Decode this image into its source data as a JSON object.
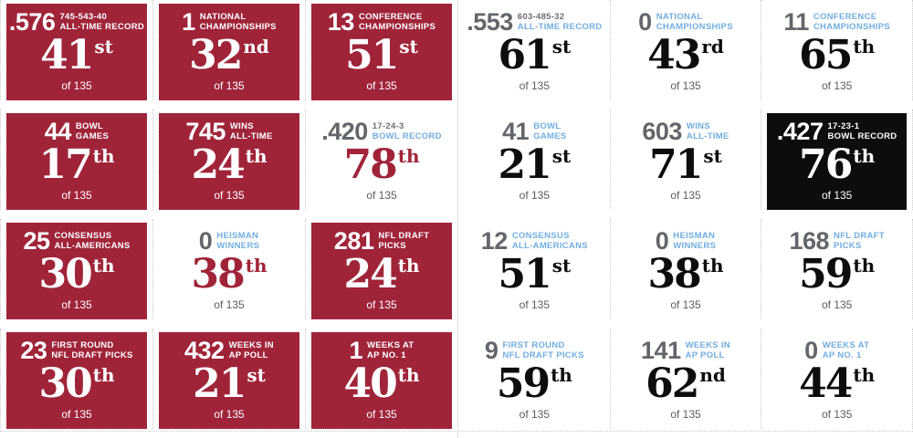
{
  "of_label": "of 135",
  "colors": {
    "left_team": "#a02439",
    "right_team": "#0d0d0d",
    "label_blue": "#72aee1",
    "stat_gray": "#63666a",
    "border": "#c9c9c9"
  },
  "teams": [
    {
      "side": "left",
      "color": "#a02439",
      "stats": [
        {
          "value": ".576",
          "label": [
            "745-543-40",
            "ALL-TIME RECORD"
          ],
          "muted_first": true,
          "rank": "41",
          "ordinal": "st",
          "highlight": true
        },
        {
          "value": "1",
          "label": [
            "NATIONAL",
            "CHAMPIONSHIPS"
          ],
          "muted_first": false,
          "rank": "32",
          "ordinal": "nd",
          "highlight": true
        },
        {
          "value": "13",
          "label": [
            "CONFERENCE",
            "CHAMPIONSHIPS"
          ],
          "muted_first": false,
          "rank": "51",
          "ordinal": "st",
          "highlight": true
        },
        {
          "value": "44",
          "label": [
            "BOWL",
            "GAMES"
          ],
          "muted_first": false,
          "rank": "17",
          "ordinal": "th",
          "highlight": true
        },
        {
          "value": "745",
          "label": [
            "WINS",
            "ALL-TIME"
          ],
          "muted_first": false,
          "rank": "24",
          "ordinal": "th",
          "highlight": true
        },
        {
          "value": ".420",
          "label": [
            "17-24-3",
            "BOWL RECORD"
          ],
          "muted_first": true,
          "rank": "78",
          "ordinal": "th",
          "highlight": false
        },
        {
          "value": "25",
          "label": [
            "CONSENSUS",
            "ALL-AMERICANS"
          ],
          "muted_first": false,
          "rank": "30",
          "ordinal": "th",
          "highlight": true
        },
        {
          "value": "0",
          "label": [
            "HEISMAN",
            "WINNERS"
          ],
          "muted_first": false,
          "rank": "38",
          "ordinal": "th",
          "highlight": false
        },
        {
          "value": "281",
          "label": [
            "NFL DRAFT",
            "PICKS"
          ],
          "muted_first": false,
          "rank": "24",
          "ordinal": "th",
          "highlight": true
        },
        {
          "value": "23",
          "label": [
            "FIRST ROUND",
            "NFL DRAFT PICKS"
          ],
          "muted_first": false,
          "rank": "30",
          "ordinal": "th",
          "highlight": true
        },
        {
          "value": "432",
          "label": [
            "WEEKS IN",
            "AP POLL"
          ],
          "muted_first": false,
          "rank": "21",
          "ordinal": "st",
          "highlight": true
        },
        {
          "value": "1",
          "label": [
            "WEEKS AT",
            "AP NO. 1"
          ],
          "muted_first": false,
          "rank": "40",
          "ordinal": "th",
          "highlight": true
        }
      ]
    },
    {
      "side": "right",
      "color": "#0d0d0d",
      "stats": [
        {
          "value": ".553",
          "label": [
            "603-485-32",
            "ALL-TIME RECORD"
          ],
          "muted_first": true,
          "rank": "61",
          "ordinal": "st",
          "highlight": false
        },
        {
          "value": "0",
          "label": [
            "NATIONAL",
            "CHAMPIONSHIPS"
          ],
          "muted_first": false,
          "rank": "43",
          "ordinal": "rd",
          "highlight": false
        },
        {
          "value": "11",
          "label": [
            "CONFERENCE",
            "CHAMPIONSHIPS"
          ],
          "muted_first": false,
          "rank": "65",
          "ordinal": "th",
          "highlight": false
        },
        {
          "value": "41",
          "label": [
            "BOWL",
            "GAMES"
          ],
          "muted_first": false,
          "rank": "21",
          "ordinal": "st",
          "highlight": false
        },
        {
          "value": "603",
          "label": [
            "WINS",
            "ALL-TIME"
          ],
          "muted_first": false,
          "rank": "71",
          "ordinal": "st",
          "highlight": false
        },
        {
          "value": ".427",
          "label": [
            "17-23-1",
            "BOWL RECORD"
          ],
          "muted_first": true,
          "rank": "76",
          "ordinal": "th",
          "highlight": true
        },
        {
          "value": "12",
          "label": [
            "CONSENSUS",
            "ALL-AMERICANS"
          ],
          "muted_first": false,
          "rank": "51",
          "ordinal": "st",
          "highlight": false
        },
        {
          "value": "0",
          "label": [
            "HEISMAN",
            "WINNERS"
          ],
          "muted_first": false,
          "rank": "38",
          "ordinal": "th",
          "highlight": false
        },
        {
          "value": "168",
          "label": [
            "NFL DRAFT",
            "PICKS"
          ],
          "muted_first": false,
          "rank": "59",
          "ordinal": "th",
          "highlight": false
        },
        {
          "value": "9",
          "label": [
            "FIRST ROUND",
            "NFL DRAFT PICKS"
          ],
          "muted_first": false,
          "rank": "59",
          "ordinal": "th",
          "highlight": false
        },
        {
          "value": "141",
          "label": [
            "WEEKS IN",
            "AP POLL"
          ],
          "muted_first": false,
          "rank": "62",
          "ordinal": "nd",
          "highlight": false
        },
        {
          "value": "0",
          "label": [
            "WEEKS AT",
            "AP NO. 1"
          ],
          "muted_first": false,
          "rank": "44",
          "ordinal": "th",
          "highlight": false
        }
      ]
    }
  ]
}
